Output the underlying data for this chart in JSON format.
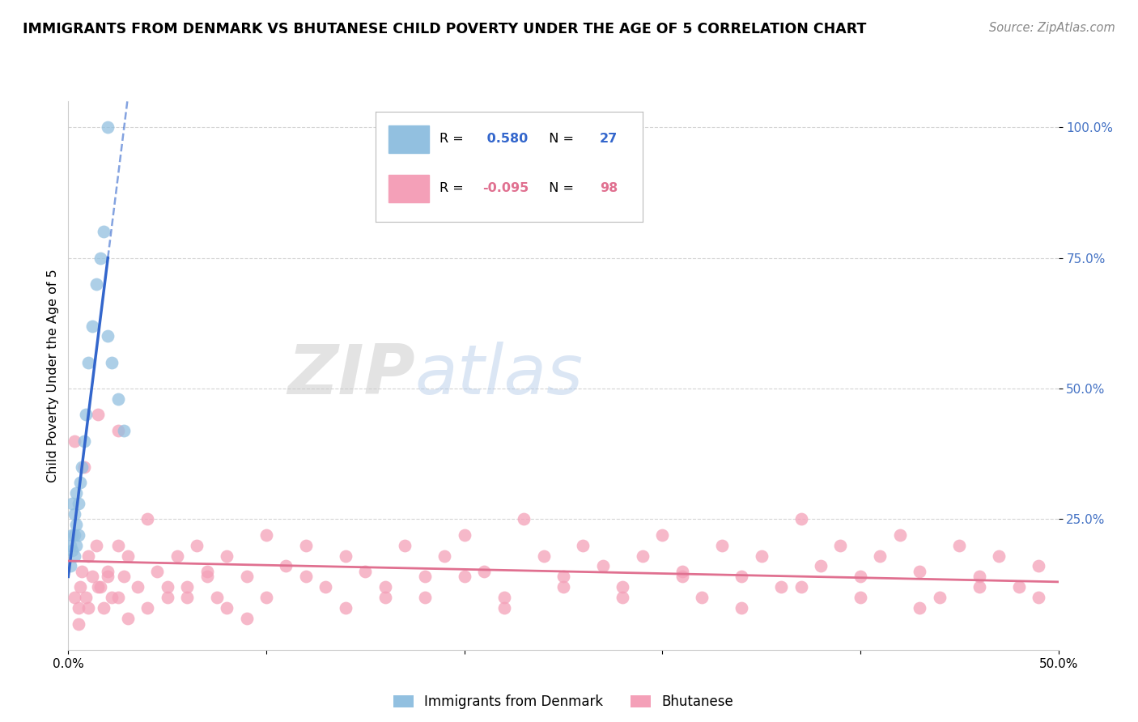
{
  "title": "IMMIGRANTS FROM DENMARK VS BHUTANESE CHILD POVERTY UNDER THE AGE OF 5 CORRELATION CHART",
  "source": "Source: ZipAtlas.com",
  "ylabel": "Child Poverty Under the Age of 5",
  "xlim": [
    0.0,
    0.5
  ],
  "ylim": [
    0.0,
    1.05
  ],
  "xticks": [
    0.0,
    0.1,
    0.2,
    0.3,
    0.4,
    0.5
  ],
  "xtick_labels": [
    "0.0%",
    "",
    "",
    "",
    "",
    "50.0%"
  ],
  "yticks": [
    0.25,
    0.5,
    0.75,
    1.0
  ],
  "ytick_labels": [
    "25.0%",
    "50.0%",
    "75.0%",
    "100.0%"
  ],
  "ytick_color": "#4472c4",
  "denmark_R": 0.58,
  "denmark_N": 27,
  "bhutan_R": -0.095,
  "bhutan_N": 98,
  "denmark_color": "#92c0e0",
  "bhutan_color": "#f4a0b8",
  "denmark_line_color": "#3366cc",
  "bhutan_line_color": "#e07090",
  "background_color": "#ffffff",
  "grid_color": "#d0d0d0",
  "watermark_zip": "ZIP",
  "watermark_atlas": "atlas",
  "legend_R_label": "R = ",
  "legend_N_label": "N = ",
  "denmark_points_x": [
    0.001,
    0.001,
    0.002,
    0.002,
    0.002,
    0.003,
    0.003,
    0.003,
    0.004,
    0.004,
    0.004,
    0.005,
    0.005,
    0.006,
    0.007,
    0.008,
    0.009,
    0.01,
    0.012,
    0.014,
    0.016,
    0.018,
    0.02,
    0.022,
    0.025,
    0.028,
    0.02
  ],
  "denmark_points_y": [
    0.16,
    0.2,
    0.19,
    0.22,
    0.28,
    0.18,
    0.22,
    0.26,
    0.2,
    0.24,
    0.3,
    0.22,
    0.28,
    0.32,
    0.35,
    0.4,
    0.45,
    0.55,
    0.62,
    0.7,
    0.75,
    0.8,
    0.6,
    0.55,
    0.48,
    0.42,
    1.0
  ],
  "bhutan_points_x": [
    0.003,
    0.005,
    0.006,
    0.007,
    0.009,
    0.01,
    0.012,
    0.014,
    0.016,
    0.018,
    0.02,
    0.022,
    0.025,
    0.028,
    0.03,
    0.035,
    0.04,
    0.045,
    0.05,
    0.055,
    0.06,
    0.065,
    0.07,
    0.075,
    0.08,
    0.09,
    0.1,
    0.11,
    0.12,
    0.13,
    0.14,
    0.15,
    0.16,
    0.17,
    0.18,
    0.19,
    0.2,
    0.21,
    0.22,
    0.23,
    0.24,
    0.25,
    0.26,
    0.27,
    0.28,
    0.29,
    0.3,
    0.31,
    0.32,
    0.33,
    0.34,
    0.35,
    0.36,
    0.37,
    0.38,
    0.39,
    0.4,
    0.41,
    0.42,
    0.43,
    0.44,
    0.45,
    0.46,
    0.47,
    0.48,
    0.49,
    0.005,
    0.01,
    0.015,
    0.02,
    0.025,
    0.03,
    0.04,
    0.05,
    0.06,
    0.07,
    0.08,
    0.09,
    0.1,
    0.12,
    0.14,
    0.16,
    0.18,
    0.2,
    0.22,
    0.25,
    0.28,
    0.31,
    0.34,
    0.37,
    0.4,
    0.43,
    0.46,
    0.49,
    0.003,
    0.008,
    0.015,
    0.025
  ],
  "bhutan_points_y": [
    0.1,
    0.08,
    0.12,
    0.15,
    0.1,
    0.18,
    0.14,
    0.2,
    0.12,
    0.08,
    0.15,
    0.1,
    0.2,
    0.14,
    0.18,
    0.12,
    0.25,
    0.15,
    0.1,
    0.18,
    0.12,
    0.2,
    0.15,
    0.1,
    0.18,
    0.14,
    0.22,
    0.16,
    0.2,
    0.12,
    0.18,
    0.15,
    0.1,
    0.2,
    0.14,
    0.18,
    0.22,
    0.15,
    0.1,
    0.25,
    0.18,
    0.14,
    0.2,
    0.16,
    0.12,
    0.18,
    0.22,
    0.15,
    0.1,
    0.2,
    0.14,
    0.18,
    0.12,
    0.25,
    0.16,
    0.2,
    0.14,
    0.18,
    0.22,
    0.15,
    0.1,
    0.2,
    0.14,
    0.18,
    0.12,
    0.16,
    0.05,
    0.08,
    0.12,
    0.14,
    0.1,
    0.06,
    0.08,
    0.12,
    0.1,
    0.14,
    0.08,
    0.06,
    0.1,
    0.14,
    0.08,
    0.12,
    0.1,
    0.14,
    0.08,
    0.12,
    0.1,
    0.14,
    0.08,
    0.12,
    0.1,
    0.08,
    0.12,
    0.1,
    0.4,
    0.35,
    0.45,
    0.42
  ]
}
